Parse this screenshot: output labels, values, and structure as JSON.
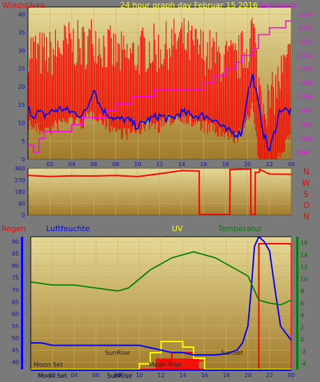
{
  "colors": {
    "frame": "#7a7a7a",
    "plot_top": "#e6da98",
    "plot_bottom": "#a27c2c",
    "wind": "#ff0000",
    "mean_wind": "#0000ee",
    "pressure": "#ff00ff",
    "direction": "#ff0000",
    "temperature": "#008000",
    "humidity": "#0000ff",
    "uv": "#ffff00",
    "rain": "#ff0000",
    "title": "#ffff00"
  },
  "panel1": {
    "title": "24 hour graph day   Februar 15 2016",
    "left_label": "Windstärke",
    "right_label": "Luftdruck"
  },
  "panel2": {
    "compass": [
      "N",
      "W",
      "S",
      "O",
      "N"
    ]
  },
  "panel3": {
    "labels": {
      "rain": "Regen",
      "humidity": "Luftfeuchte",
      "uv": "UV",
      "temperature": "Temperatur"
    },
    "annotations": [
      "SunRise",
      "SunSet",
      "Moon Set",
      "Moon Rise",
      "Moon Set",
      "SunRise"
    ]
  },
  "chart_data": [
    {
      "type": "line",
      "x_unit": "hour",
      "xlim": [
        0,
        24
      ],
      "xticks": [
        "02",
        "04",
        "06",
        "08",
        "10",
        "12",
        "14",
        "16",
        "18",
        "20",
        "22",
        "00"
      ],
      "y_left": {
        "lim": [
          0,
          42
        ],
        "ticks": [
          "0",
          "5",
          "10",
          "15",
          "20",
          "25",
          "30",
          "35",
          "40"
        ]
      },
      "y_right": {
        "lim": [
          997,
          1019
        ],
        "ticks": [
          "998",
          "1000",
          "1002",
          "1004",
          "1006",
          "1008",
          "1010",
          "1012",
          "1014",
          "1016",
          "1018"
        ]
      },
      "series": [
        {
          "axis": "left",
          "style": "gust-bars",
          "x": [
            0,
            1,
            2,
            3,
            4,
            5,
            6,
            7,
            8,
            9,
            10,
            11,
            12,
            13,
            14,
            15,
            16,
            17,
            18,
            19,
            20,
            20.5,
            21,
            21.5,
            22,
            23,
            24
          ],
          "y": [
            24,
            22,
            22,
            24,
            25,
            24,
            27,
            24,
            22,
            21,
            22,
            24,
            23,
            25,
            26,
            24,
            23,
            22,
            20,
            20,
            24,
            30,
            14,
            10,
            8,
            16,
            21
          ]
        },
        {
          "axis": "left",
          "x": [
            0,
            0.5,
            1,
            1.5,
            2,
            3,
            4,
            5,
            5.5,
            6,
            6.5,
            7,
            8,
            9,
            10,
            11,
            12,
            13,
            14,
            15,
            16,
            17,
            18,
            19,
            19.5,
            20,
            20.5,
            21,
            21.5,
            22,
            22.5,
            23,
            24
          ],
          "y": [
            14,
            12,
            13,
            12,
            13,
            14,
            13,
            12,
            15,
            20,
            15,
            13,
            11,
            11,
            9,
            11,
            12,
            11,
            13,
            12,
            12,
            11,
            8,
            7,
            7.5,
            18,
            23,
            15,
            7,
            2,
            8,
            14,
            13
          ]
        },
        {
          "axis": "right",
          "style": "step",
          "x": [
            0,
            0.5,
            1,
            1.5,
            2.5,
            4,
            5,
            7,
            8,
            9.5,
            11,
            11.5,
            12,
            14,
            16,
            17,
            18,
            19,
            19.5,
            20.5,
            21,
            22,
            22.5,
            23.5,
            24
          ],
          "y": [
            999,
            998,
            1000,
            1001,
            1001,
            1002,
            1003,
            1004,
            1005,
            1006,
            1006,
            1007,
            1007,
            1007,
            1008,
            1009,
            1010,
            1011,
            1012,
            1013,
            1015,
            1016,
            1016,
            1017,
            1017
          ]
        }
      ]
    },
    {
      "type": "line",
      "xlim": [
        0,
        24
      ],
      "ylim": [
        0,
        360
      ],
      "yticks": [
        "0",
        "90",
        "180",
        "270",
        "360"
      ],
      "series": [
        {
          "x": [
            0,
            2,
            4,
            6,
            8,
            10,
            12,
            14,
            15.6,
            15.61,
            18.4,
            18.41,
            20.3,
            20.31,
            20.7,
            20.71,
            21.1,
            21.11,
            22,
            24
          ],
          "y": [
            300,
            295,
            300,
            305,
            300,
            300,
            320,
            340,
            340,
            5,
            5,
            350,
            350,
            5,
            5,
            330,
            330,
            350,
            320,
            318
          ]
        }
      ]
    },
    {
      "type": "line",
      "xlim": [
        0,
        24
      ],
      "y_left": {
        "lim": [
          37,
          92
        ],
        "ticks": [
          "40",
          "45",
          "50",
          "55",
          "60",
          "65",
          "70",
          "75",
          "80",
          "85",
          "90"
        ]
      },
      "y_right": {
        "lim": [
          -5,
          17
        ],
        "ticks": [
          "-4",
          "-2",
          "0",
          "2",
          "4",
          "6",
          "8",
          "10",
          "12",
          "14",
          "16"
        ]
      },
      "series": [
        {
          "axis": "right",
          "x": [
            0,
            2,
            4,
            6,
            8,
            9,
            10,
            11,
            12,
            13,
            14,
            15,
            16,
            17,
            18,
            19,
            20,
            21,
            22,
            23,
            24
          ],
          "y": [
            9.5,
            9,
            9,
            8.5,
            8,
            8.5,
            10,
            11.5,
            12.5,
            13.5,
            14,
            14.5,
            14,
            13.5,
            12.5,
            11.5,
            10.5,
            6.5,
            6,
            5.7,
            6.5
          ]
        },
        {
          "axis": "left",
          "x": [
            0,
            1,
            2,
            4,
            6,
            8,
            10,
            11,
            12,
            13,
            14,
            15,
            16,
            17,
            18,
            19,
            19.5,
            20,
            20.3,
            20.6,
            21,
            21.5,
            22,
            22.5,
            23,
            23.5,
            24
          ],
          "y": [
            48,
            48,
            47,
            47,
            47,
            47,
            47,
            46,
            45,
            44,
            44,
            43,
            43,
            43,
            43.5,
            45,
            48,
            55,
            70,
            88,
            92,
            90,
            86,
            70,
            55,
            52,
            49
          ]
        },
        {
          "axis": "uv",
          "style": "step",
          "x": [
            0,
            9,
            10,
            11,
            12,
            13,
            14,
            15,
            16,
            24
          ],
          "y": [
            0,
            0,
            1,
            3,
            5,
            5,
            4,
            2,
            0,
            0
          ]
        },
        {
          "axis": "rain",
          "style": "step",
          "x": [
            0,
            11,
            12,
            13,
            14,
            15,
            16,
            17,
            20,
            21,
            22,
            24
          ],
          "y": [
            0,
            0,
            1,
            2,
            2,
            1,
            0,
            0,
            0,
            15,
            15,
            15
          ]
        }
      ]
    }
  ]
}
